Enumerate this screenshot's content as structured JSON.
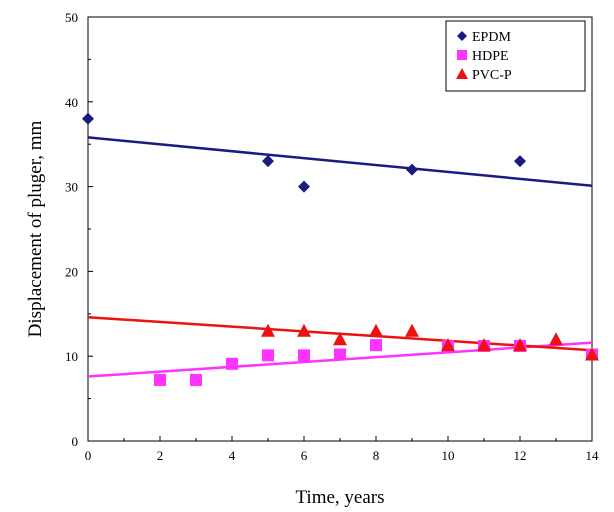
{
  "chart_data": {
    "type": "scatter",
    "title": "",
    "xlabel": "Time, years",
    "ylabel": "Displacement of pluger, mm",
    "xlim": [
      0,
      14
    ],
    "ylim": [
      0,
      50
    ],
    "x_ticks": [
      "0",
      "2",
      "4",
      "6",
      "8",
      "10",
      "12",
      "14"
    ],
    "y_ticks": [
      "0",
      "10",
      "20",
      "30",
      "40",
      "50"
    ],
    "grid": false,
    "legend_position": "top-right",
    "series": [
      {
        "name": "EPDM",
        "marker": "diamond",
        "color": "#1a1a80",
        "points": [
          [
            0,
            38
          ],
          [
            5,
            33
          ],
          [
            6,
            30
          ],
          [
            9,
            32
          ],
          [
            12,
            33
          ]
        ],
        "trendline": [
          [
            0,
            35.8
          ],
          [
            14,
            30.1
          ]
        ]
      },
      {
        "name": "HDPE",
        "marker": "square",
        "color": "#ff33ff",
        "points": [
          [
            2,
            7.2
          ],
          [
            3,
            7.2
          ],
          [
            4,
            9.1
          ],
          [
            5,
            10.1
          ],
          [
            6,
            10.1
          ],
          [
            7,
            10.2
          ],
          [
            8,
            11.3
          ],
          [
            10,
            11.2
          ],
          [
            11,
            11.2
          ],
          [
            12,
            11.2
          ],
          [
            14,
            10.2
          ]
        ],
        "trendline": [
          [
            0,
            7.6
          ],
          [
            14,
            11.6
          ]
        ]
      },
      {
        "name": "PVC-P",
        "marker": "triangle",
        "color": "#ee1111",
        "points": [
          [
            5,
            13
          ],
          [
            6,
            13
          ],
          [
            7,
            12
          ],
          [
            8,
            13
          ],
          [
            9,
            13
          ],
          [
            10,
            11.3
          ],
          [
            11,
            11.3
          ],
          [
            12,
            11.3
          ],
          [
            13,
            12
          ],
          [
            14,
            10.2
          ]
        ],
        "trendline": [
          [
            0,
            14.6
          ],
          [
            14,
            10.7
          ]
        ]
      }
    ]
  }
}
